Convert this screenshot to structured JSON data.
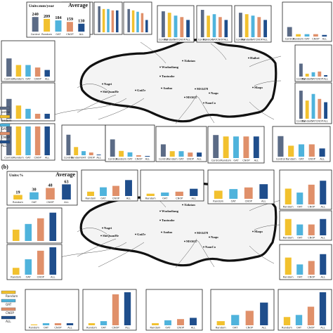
{
  "colors": {
    "Control": "#5b6b86",
    "Random": "#f2c12e",
    "OAT": "#4fb3dc",
    "CNOP": "#e0906a",
    "ALL": "#1f4e8c"
  },
  "panel_a": {
    "units": "Units:mm/year",
    "average_label": "Average",
    "legend": [
      "ontrol",
      "andom",
      "OAT",
      "CNOP",
      "ALL"
    ],
    "sites": [
      "Wudaoliang",
      "Tuotuohe",
      "Anduo",
      "Nagri",
      "ShiQuanHe",
      "GaiZe",
      "Xidatan",
      "Haibei",
      "Maqu",
      "MS3478",
      "MS3637",
      "Naqu",
      "NamCo"
    ]
  },
  "panel_b": {
    "label": "(b)",
    "units": "Units:%",
    "average_label": "Average",
    "legend": [
      "Random",
      "OAT",
      "CNOP",
      "ALL"
    ],
    "sites": [
      "Wudaoliang",
      "Tuotuohe",
      "Anduo",
      "Nagri",
      "ShiQuanHe",
      "GaiZe",
      "Xidatan",
      "Haibei",
      "Maqu",
      "MS3478",
      "MS3637",
      "Naqu",
      "NamCo"
    ]
  },
  "chart_data": [
    {
      "type": "bar",
      "panel": "a-average",
      "categories": [
        "Control",
        "Random",
        "OAT",
        "CNOP",
        "ALL"
      ],
      "values": [
        240,
        209,
        184,
        159,
        130
      ],
      "data_labels": [
        "240",
        "209",
        "184",
        "159",
        "130"
      ],
      "title": "Average",
      "ylabel": "Units:mm/year",
      "ylim": [
        0,
        300
      ]
    },
    {
      "type": "bar",
      "panel": "b-average",
      "categories": [
        "Random",
        "OAT",
        "CNOP",
        "ALL"
      ],
      "values": [
        19,
        30,
        48,
        63
      ],
      "data_labels": [
        "19",
        "30",
        "48",
        "63"
      ],
      "title": "Average",
      "ylabel": "Units:%",
      "ylim": [
        0,
        70
      ]
    }
  ]
}
